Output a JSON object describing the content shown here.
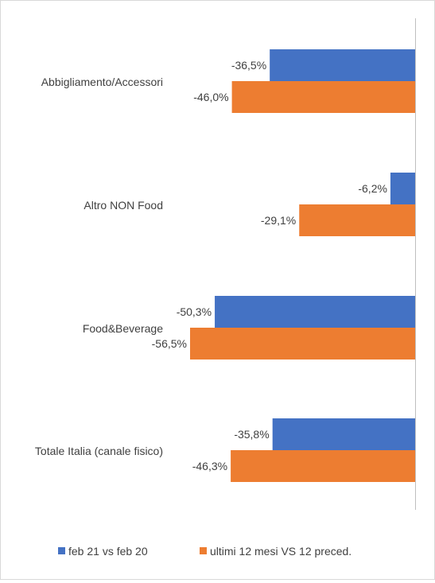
{
  "chart_data": {
    "type": "bar",
    "orientation": "horizontal",
    "categories": [
      "Abbigliamento/Accessori",
      "Altro NON Food",
      "Food&Beverage",
      "Totale Italia (canale fisico)"
    ],
    "series": [
      {
        "name": "feb 21 vs feb 20",
        "color": "#4472C4",
        "values": [
          -36.5,
          -6.2,
          -50.3,
          -35.8
        ],
        "labels": [
          "-36,5%",
          "-6,2%",
          "-50,3%",
          "-35,8%"
        ]
      },
      {
        "name": "ultimi 12 mesi VS 12 preced.",
        "color": "#ED7D31",
        "values": [
          -46.0,
          -29.1,
          -56.5,
          -46.3
        ],
        "labels": [
          "-46,0%",
          "-29,1%",
          "-56,5%",
          "-46,3%"
        ]
      }
    ],
    "xlim": [
      -60,
      0
    ],
    "grid": false,
    "legend": "bottom",
    "axis_color": "#bfbfbf"
  }
}
